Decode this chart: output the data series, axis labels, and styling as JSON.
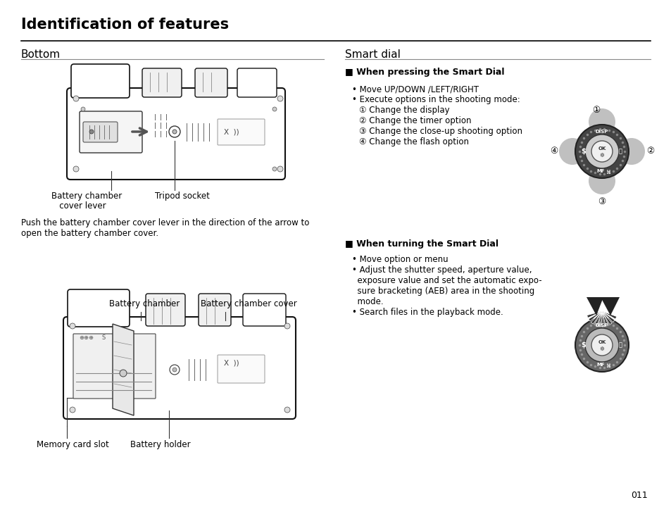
{
  "title": "Identification of features",
  "page_number": "011",
  "bg_color": "#ffffff",
  "text_color": "#000000",
  "section_left": "Bottom",
  "section_right": "Smart dial",
  "subsection1": "■ When pressing the Smart Dial",
  "subsection2": "■ When turning the Smart Dial",
  "bullet1a": "• Move UP/DOWN /LEFT/RIGHT",
  "bullet1b": "• Execute options in the shooting mode:",
  "bullet1c": "① Change the display",
  "bullet1d": "② Change the timer option",
  "bullet1e": "③ Change the close-up shooting option",
  "bullet1f": "④ Change the flash option",
  "bullet2a": "• Move option or menu",
  "bullet2b": "• Adjust the shutter speed, aperture value,",
  "bullet2c": "  exposure value and set the automatic expo-",
  "bullet2d": "  sure bracketing (AEB) area in the shooting",
  "bullet2e": "  mode.",
  "bullet2f": "• Search files in the playback mode.",
  "label_battery_lever1": "Battery chamber",
  "label_battery_lever2": "   cover lever",
  "label_tripod": "Tripod socket",
  "label_battery_chamber": "Battery chamber",
  "label_battery_cover": "Battery chamber cover",
  "label_memory_slot": "Memory card slot",
  "label_battery_holder": "Battery holder",
  "push_text1": "Push the battery chamber cover lever in the direction of the arrow to",
  "push_text2": "open the battery chamber cover."
}
